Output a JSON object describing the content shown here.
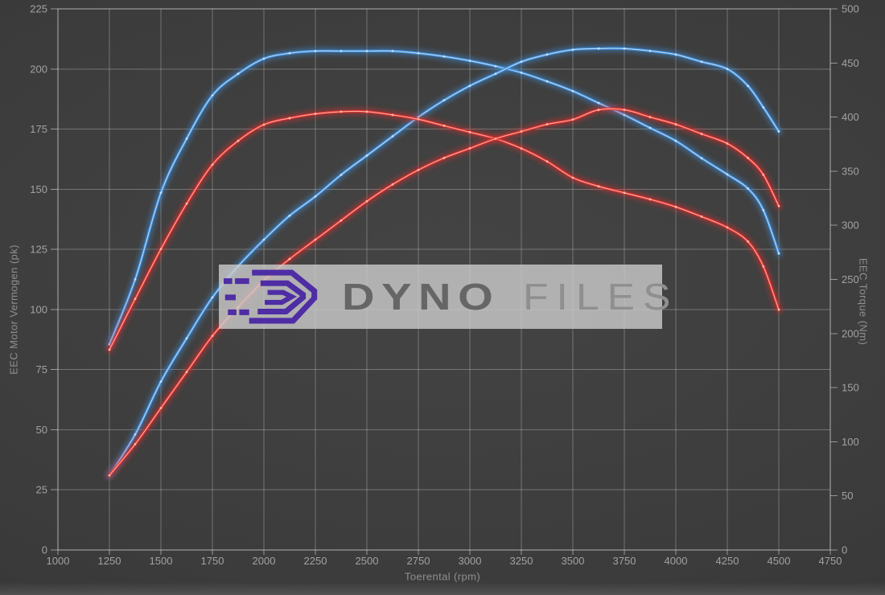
{
  "watermark": {
    "brand_bold": "DYNO",
    "brand_light": "FILES",
    "logo_color": "#4e2da5",
    "panel_color": "rgba(201,201,201,0.82)"
  },
  "chart_data": {
    "type": "line",
    "title": "",
    "xlabel": "Toerental (rpm)",
    "ylabel_left": "EEC Motor Vermogen (pk)",
    "ylabel_right": "EEC Torque (Nm)",
    "xlim": [
      1000,
      4750
    ],
    "ylim_left": [
      0,
      225
    ],
    "ylim_right": [
      0,
      500
    ],
    "x_ticks": [
      1000,
      1250,
      1500,
      1750,
      2000,
      2250,
      2500,
      2750,
      3000,
      3250,
      3500,
      3750,
      4000,
      4250,
      4500,
      4750
    ],
    "y_left_ticks": [
      0,
      25,
      50,
      75,
      100,
      125,
      150,
      175,
      200,
      225
    ],
    "y_right_ticks": [
      0,
      50,
      100,
      150,
      200,
      250,
      300,
      350,
      400,
      450,
      500
    ],
    "grid": true,
    "legend": "none",
    "colors": {
      "blue_core": "#3f8fdc",
      "blue_hilite": "#cfe4f8",
      "red_core": "#e02f2f",
      "red_hilite": "#ffc4b0",
      "grid_line": "rgba(215,215,215,0.35)",
      "spine": "rgba(225,225,225,0.55)",
      "tick_text": "#a2a2a2"
    },
    "x": [
      1250,
      1375,
      1500,
      1625,
      1750,
      1875,
      2000,
      2125,
      2250,
      2375,
      2500,
      2625,
      2750,
      2875,
      3000,
      3125,
      3250,
      3375,
      3500,
      3625,
      3750,
      3875,
      4000,
      4125,
      4250,
      4350,
      4425,
      4500
    ],
    "series": [
      {
        "name": "torque-tuned-blue",
        "axis": "right",
        "color_key": "blue",
        "values": [
          190,
          250,
          330,
          380,
          420,
          440,
          454,
          459,
          461,
          461,
          461,
          461,
          459,
          456,
          452,
          447,
          441,
          433,
          424,
          413,
          402,
          390,
          378,
          362,
          347,
          334,
          314,
          274
        ]
      },
      {
        "name": "power-tuned-blue",
        "axis": "left",
        "color_key": "blue",
        "values": [
          31,
          48,
          70,
          88,
          105,
          118,
          129,
          139,
          147,
          156,
          164,
          172,
          180,
          187,
          193,
          198,
          203,
          206,
          208,
          208.5,
          208.5,
          207.5,
          206,
          203,
          200,
          193,
          184,
          174
        ]
      },
      {
        "name": "torque-stock-red",
        "axis": "right",
        "color_key": "red",
        "values": [
          185,
          232,
          278,
          320,
          356,
          378,
          393,
          399,
          403,
          405,
          405,
          402,
          398,
          392,
          386,
          380,
          371,
          359,
          344,
          336,
          330,
          324,
          317,
          308,
          298,
          285,
          262,
          222
        ]
      },
      {
        "name": "power-stock-red",
        "axis": "left",
        "color_key": "red",
        "values": [
          31,
          44,
          59,
          74,
          89,
          101,
          112,
          121,
          129,
          137,
          145,
          152,
          158,
          163,
          167,
          171,
          174,
          177,
          179,
          183,
          183,
          180,
          177,
          173,
          169,
          163,
          156,
          143
        ]
      }
    ]
  }
}
